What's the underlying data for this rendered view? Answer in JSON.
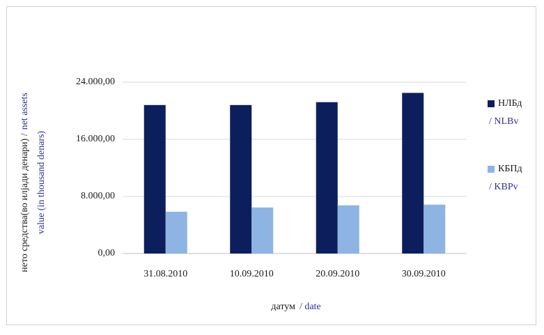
{
  "chart_data": {
    "type": "bar",
    "y_label": {
      "local": "нето средства(во илјади денари) /",
      "en_1": "net assets",
      "en_2": "value (in thousand denars)"
    },
    "x_label": {
      "local": "датум",
      "en": "/ date"
    },
    "categories": [
      "31.08.2010",
      "10.09.2010",
      "20.09.2010",
      "30.09.2010"
    ],
    "series": [
      {
        "name": "НЛБд",
        "name_en": "/ NLBv",
        "color": "#0c1f5c",
        "values": [
          20800,
          20800,
          21200,
          22500
        ]
      },
      {
        "name": "КБПд",
        "name_en": "/ KBPv",
        "color": "#8eb4e3",
        "values": [
          5850,
          6450,
          6750,
          6850
        ]
      }
    ],
    "ylim": [
      0,
      24000
    ],
    "yticks": [
      {
        "value": 0,
        "label": "0,00"
      },
      {
        "value": 8000,
        "label": "8.000,00"
      },
      {
        "value": 16000,
        "label": "16.000,00"
      },
      {
        "value": 24000,
        "label": "24.000,00"
      }
    ],
    "grid": true,
    "legend": "right"
  }
}
